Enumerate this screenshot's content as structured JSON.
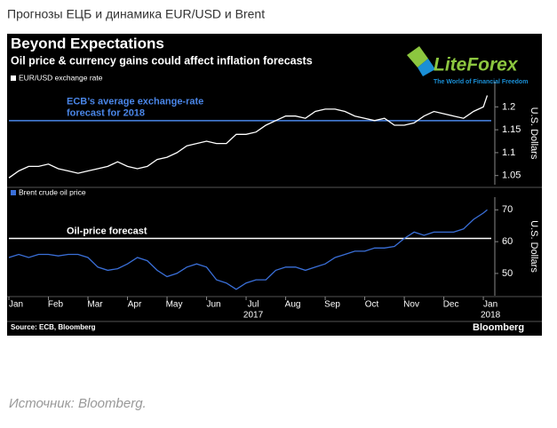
{
  "header": "Прогнозы ЕЦБ и динамика EUR/USD и Brent",
  "title": "Beyond Expectations",
  "subtitle": "Oil price & currency gains could affect inflation forecasts",
  "logo": {
    "name": "LiteForex",
    "tagline": "The World of Financial Freedom"
  },
  "source": "Source: ECB, Bloomberg",
  "brand": "Bloomberg",
  "caption": "Источник: Bloomberg.",
  "chart_data": [
    {
      "type": "line",
      "x": [
        0,
        0.25,
        0.5,
        0.75,
        1,
        1.25,
        1.5,
        1.75,
        2,
        2.25,
        2.5,
        2.75,
        3,
        3.25,
        3.5,
        3.75,
        4,
        4.25,
        4.5,
        4.75,
        5,
        5.25,
        5.5,
        5.75,
        6,
        6.25,
        6.5,
        6.75,
        7,
        7.25,
        7.5,
        7.75,
        8,
        8.25,
        8.5,
        8.75,
        9,
        9.25,
        9.5,
        9.75,
        10,
        10.25,
        10.5,
        10.75,
        11,
        11.25,
        11.5,
        11.75,
        12,
        12.1
      ],
      "series": [
        {
          "name": "EUR/USD exchange rate",
          "color": "#ffffff",
          "values": [
            1.045,
            1.06,
            1.07,
            1.07,
            1.075,
            1.065,
            1.06,
            1.055,
            1.06,
            1.065,
            1.07,
            1.08,
            1.07,
            1.065,
            1.07,
            1.085,
            1.09,
            1.1,
            1.115,
            1.12,
            1.125,
            1.12,
            1.12,
            1.14,
            1.14,
            1.145,
            1.16,
            1.17,
            1.18,
            1.18,
            1.175,
            1.19,
            1.195,
            1.195,
            1.19,
            1.18,
            1.175,
            1.17,
            1.175,
            1.16,
            1.16,
            1.165,
            1.18,
            1.19,
            1.185,
            1.18,
            1.175,
            1.19,
            1.2,
            1.225
          ]
        }
      ],
      "xlim": [
        0,
        12.2
      ],
      "ylim": [
        1.03,
        1.255
      ],
      "yticks": [
        1.05,
        1.1,
        1.15,
        1.2
      ],
      "y_label": "U.S. Dollars",
      "reference_line": {
        "value": 1.17,
        "color": "#4a86e8",
        "label": [
          "ECB’s average exchange-rate",
          "forecast for 2018"
        ]
      }
    },
    {
      "type": "line",
      "x": [
        0,
        0.25,
        0.5,
        0.75,
        1,
        1.25,
        1.5,
        1.75,
        2,
        2.25,
        2.5,
        2.75,
        3,
        3.25,
        3.5,
        3.75,
        4,
        4.25,
        4.5,
        4.75,
        5,
        5.25,
        5.5,
        5.75,
        6,
        6.25,
        6.5,
        6.75,
        7,
        7.25,
        7.5,
        7.75,
        8,
        8.25,
        8.5,
        8.75,
        9,
        9.25,
        9.5,
        9.75,
        10,
        10.25,
        10.5,
        10.75,
        11,
        11.25,
        11.5,
        11.75,
        12,
        12.1
      ],
      "series": [
        {
          "name": "Brent crude oil price",
          "color": "#3a6fd8",
          "values": [
            55,
            56,
            55,
            56,
            56,
            55.5,
            56,
            56,
            55,
            52,
            51,
            51.5,
            53,
            55,
            54,
            51,
            49,
            50,
            52,
            53,
            52,
            48,
            47,
            45,
            47,
            48,
            48,
            51,
            52,
            52,
            51,
            52,
            53,
            55,
            56,
            57,
            57,
            58,
            58,
            58.5,
            61,
            63,
            62,
            63,
            63,
            63,
            64,
            67,
            69,
            70
          ]
        }
      ],
      "xlim": [
        0,
        12.2
      ],
      "ylim": [
        43,
        74
      ],
      "yticks": [
        50,
        60,
        70
      ],
      "xticks": [
        {
          "value": 0,
          "label": "Jan"
        },
        {
          "value": 1,
          "label": "Feb"
        },
        {
          "value": 2,
          "label": "Mar"
        },
        {
          "value": 3,
          "label": "Apr"
        },
        {
          "value": 4,
          "label": "May"
        },
        {
          "value": 5,
          "label": "Jun"
        },
        {
          "value": 6,
          "label": "Jul"
        },
        {
          "value": 7,
          "label": "Aug"
        },
        {
          "value": 8,
          "label": "Sep"
        },
        {
          "value": 9,
          "label": "Oct"
        },
        {
          "value": 10,
          "label": "Nov"
        },
        {
          "value": 11,
          "label": "Dec"
        },
        {
          "value": 12,
          "label": "Jan"
        }
      ],
      "year_labels": [
        {
          "value": 6,
          "label": "2017"
        },
        {
          "value": 12,
          "label": "2018"
        }
      ],
      "y_label": "U.S. Dollars",
      "reference_line": {
        "value": 61,
        "color": "#ffffff",
        "label": [
          "Oil-price forecast"
        ]
      }
    }
  ]
}
